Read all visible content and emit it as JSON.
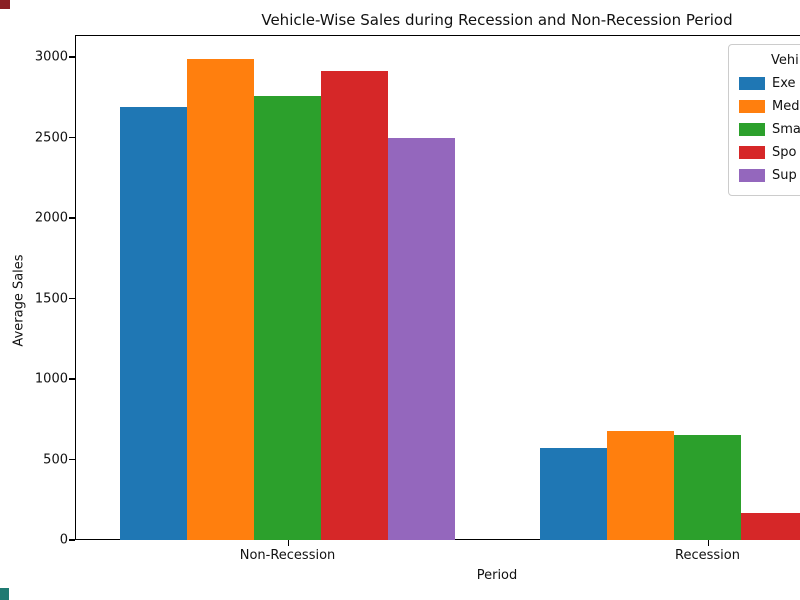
{
  "chart_data": {
    "type": "bar",
    "title": "Vehicle-Wise Sales during Recession and Non-Recession Period",
    "xlabel": "Period",
    "ylabel": "Average Sales",
    "categories": [
      "Non-Recession",
      "Recession"
    ],
    "series": [
      {
        "name": "Exe",
        "color": "#1f77b4",
        "values": [
          2690,
          570
        ]
      },
      {
        "name": "Med",
        "color": "#ff7f0e",
        "values": [
          2985,
          675
        ]
      },
      {
        "name": "Sma",
        "color": "#2ca02c",
        "values": [
          2760,
          650
        ]
      },
      {
        "name": "Spo",
        "color": "#d62728",
        "values": [
          2915,
          170
        ]
      },
      {
        "name": "Sup",
        "color": "#9467bd",
        "values": [
          2500,
          null
        ]
      }
    ],
    "legend_title": "Vehi",
    "legend_position": "upper-right, clipped by right edge of image",
    "ylim": [
      0,
      3100
    ],
    "yticks": [
      0,
      500,
      1000,
      1500,
      2000,
      2500,
      3000
    ],
    "grid": false,
    "note": "figure is cropped at the right edge; legend text and last Recession bar are cut off"
  },
  "artifacts": {
    "top_left_color": "#8a1f24",
    "bottom_left_color": "#1f7a72"
  }
}
